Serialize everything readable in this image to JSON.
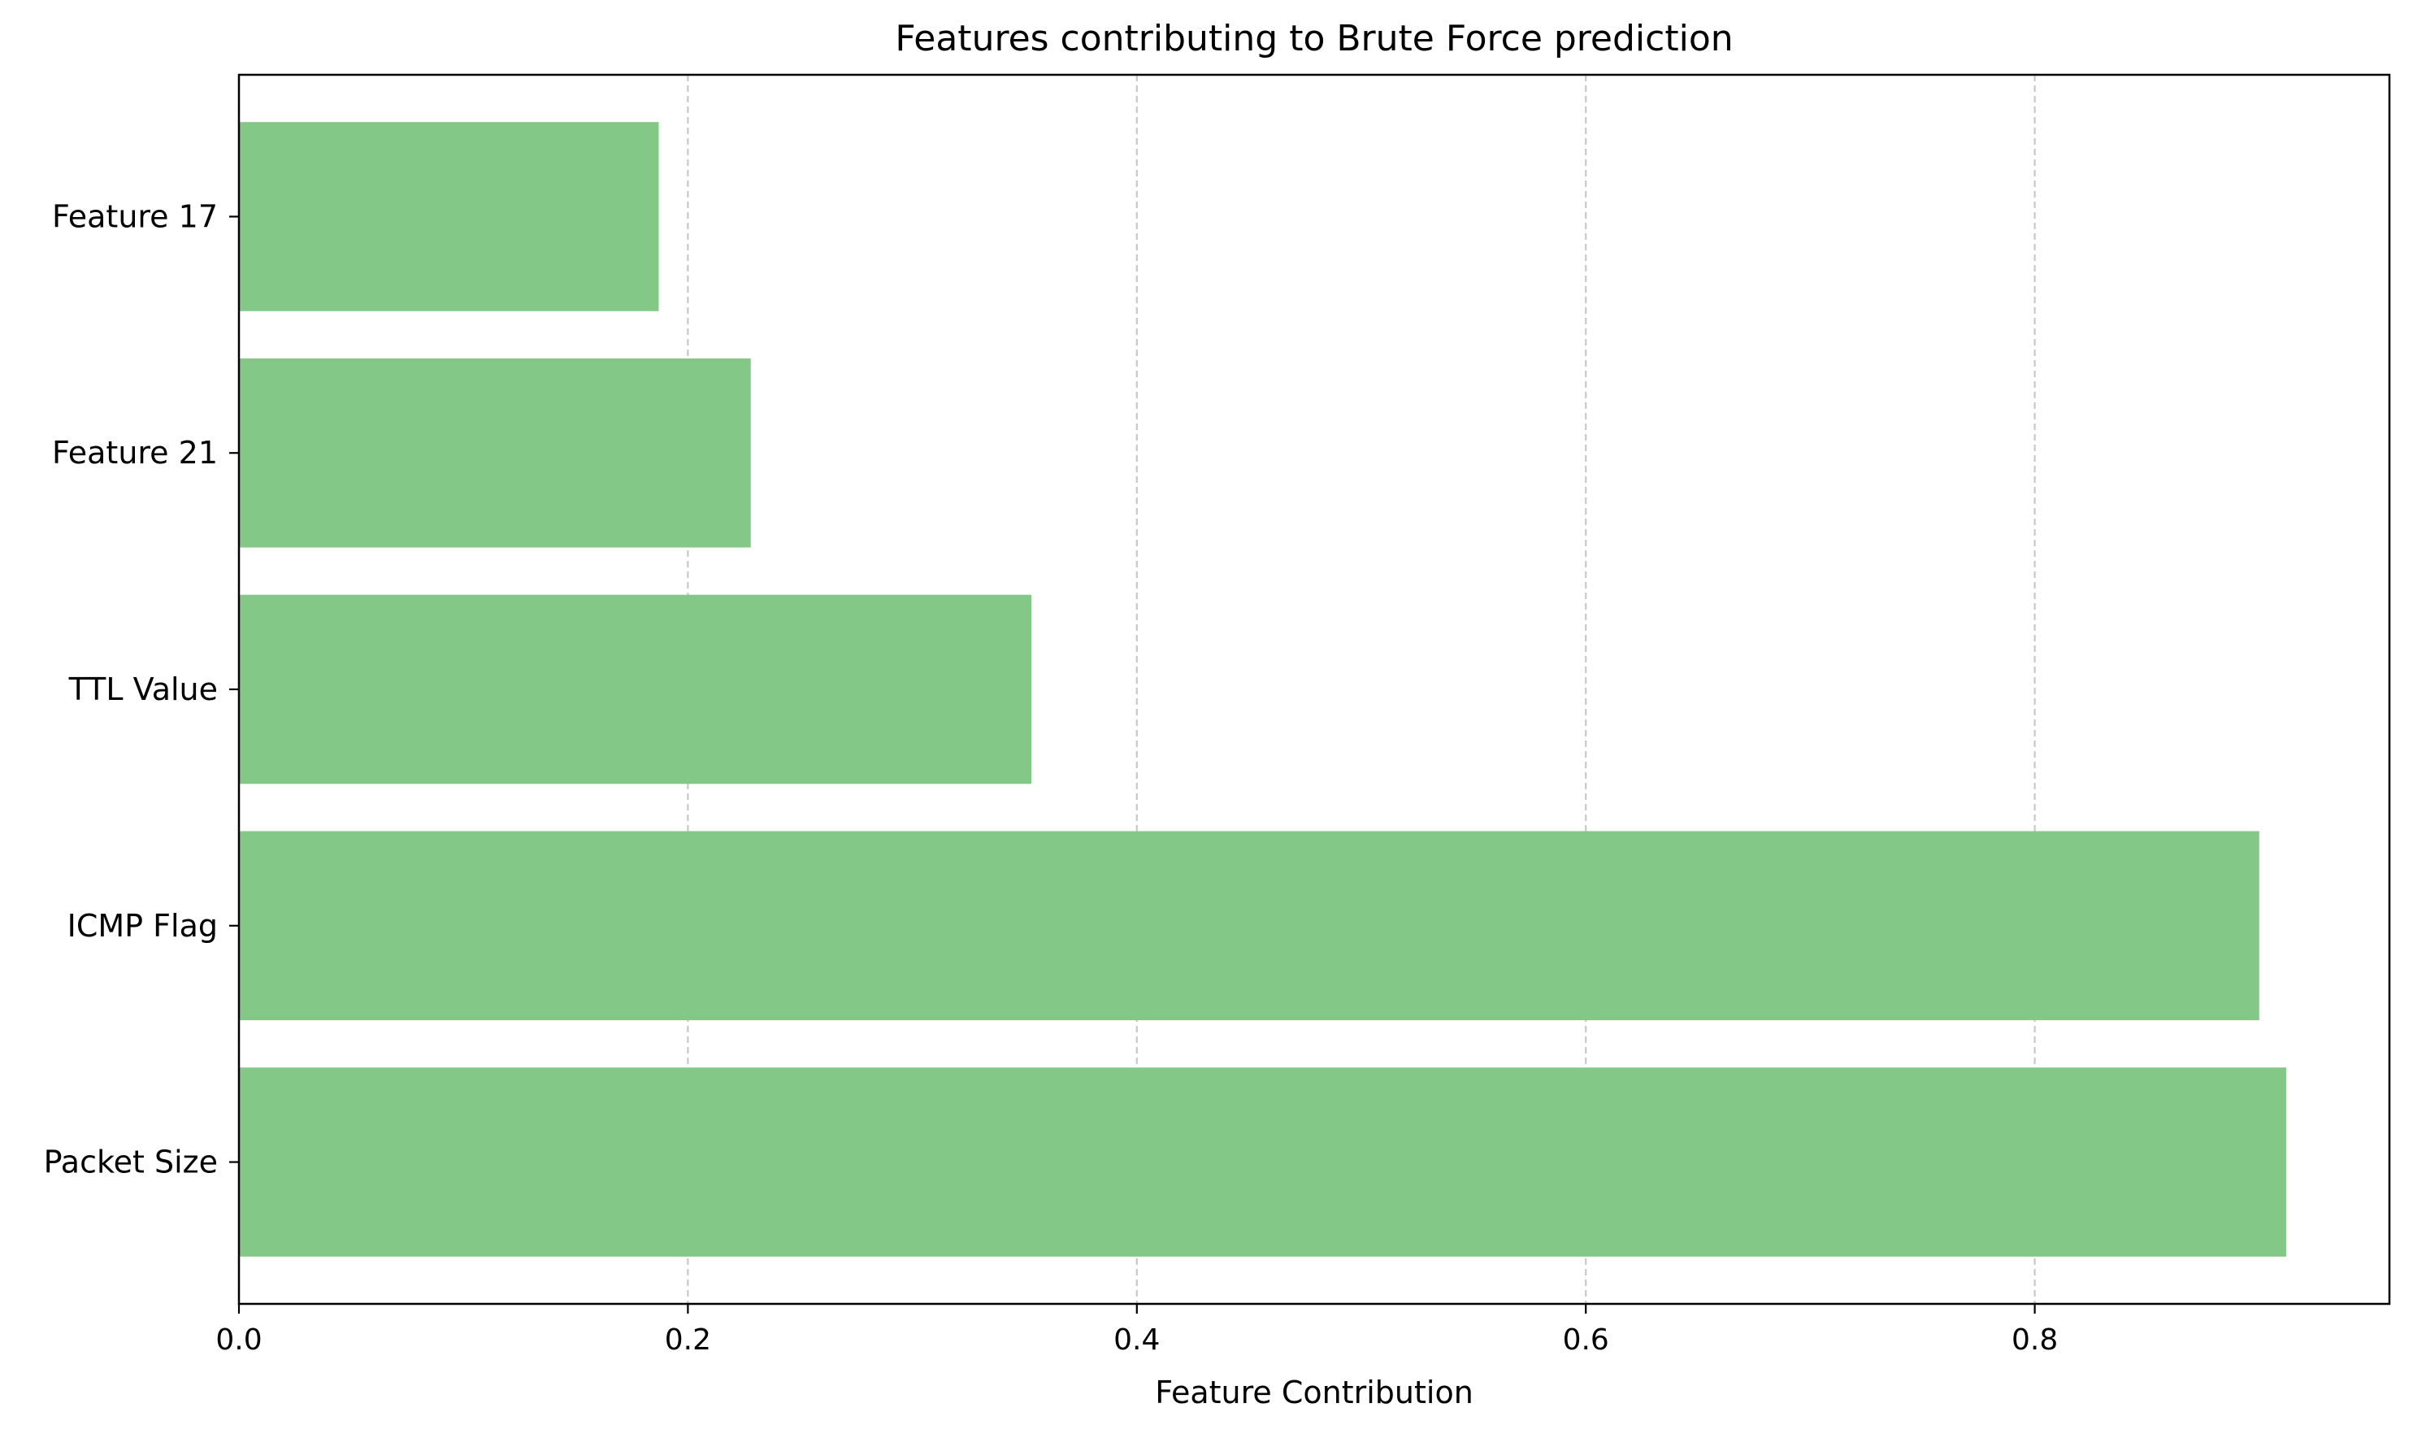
{
  "chart_data": {
    "type": "bar",
    "orientation": "horizontal",
    "title": "Features contributing to Brute Force prediction",
    "xlabel": "Feature Contribution",
    "ylabel": "",
    "categories": [
      "Packet Size",
      "ICMP Flag",
      "TTL Value",
      "Feature 21",
      "Feature 17"
    ],
    "values": [
      0.912,
      0.9,
      0.353,
      0.228,
      0.187
    ],
    "xlim": [
      0,
      0.958
    ],
    "xticks": [
      0.0,
      0.2,
      0.4,
      0.6,
      0.8
    ],
    "xtick_labels": [
      "0.0",
      "0.2",
      "0.4",
      "0.6",
      "0.8"
    ],
    "grid": "x-axis dashed",
    "legend": "none",
    "bar_color": "#84c887",
    "grid_color": "#c8c8c8"
  }
}
